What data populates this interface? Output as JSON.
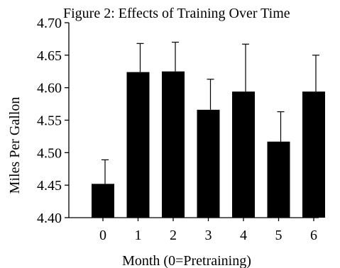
{
  "chart_data": {
    "type": "bar",
    "title": "Figure 2: Effects of Training Over Time",
    "xlabel": "Month (0=Pretraining)",
    "ylabel": "Miles Per Gallon",
    "categories": [
      "0",
      "1",
      "2",
      "3",
      "4",
      "5",
      "6"
    ],
    "values": [
      4.452,
      4.624,
      4.625,
      4.566,
      4.594,
      4.517,
      4.594
    ],
    "error_upper": [
      4.489,
      4.668,
      4.67,
      4.613,
      4.667,
      4.563,
      4.65
    ],
    "ylim": [
      4.4,
      4.7
    ],
    "yticks": [
      "4.40",
      "4.45",
      "4.50",
      "4.55",
      "4.60",
      "4.65",
      "4.70"
    ],
    "grid": false,
    "legend": "none",
    "bar_color": "#000000"
  }
}
